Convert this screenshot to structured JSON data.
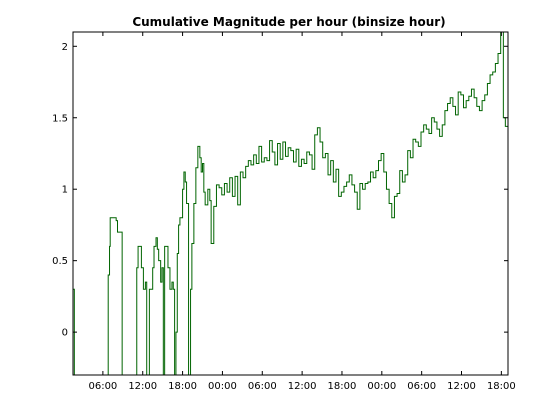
{
  "chart_data": {
    "type": "line",
    "title": "Cumulative Magnitude per hour (binsize  hour)",
    "xlabel": "",
    "ylabel": "",
    "xlim": [
      0,
      65.5
    ],
    "ylim": [
      -0.3,
      2.1
    ],
    "x_ticks": [
      {
        "x": 4.5,
        "label": "06:00"
      },
      {
        "x": 10.5,
        "label": "12:00"
      },
      {
        "x": 16.5,
        "label": "18:00"
      },
      {
        "x": 22.5,
        "label": "00:00"
      },
      {
        "x": 28.5,
        "label": "06:00"
      },
      {
        "x": 34.5,
        "label": "12:00"
      },
      {
        "x": 40.5,
        "label": "18:00"
      },
      {
        "x": 46.5,
        "label": "00:00"
      },
      {
        "x": 52.5,
        "label": "06:00"
      },
      {
        "x": 58.5,
        "label": "12:00"
      },
      {
        "x": 64.5,
        "label": "18:00"
      }
    ],
    "y_ticks": [
      {
        "y": 0,
        "label": "0"
      },
      {
        "y": 0.5,
        "label": "0.5"
      },
      {
        "y": 1,
        "label": "1"
      },
      {
        "y": 1.5,
        "label": "1.5"
      },
      {
        "y": 2,
        "label": "2"
      }
    ],
    "grid": false,
    "legend": "none",
    "series": [
      {
        "color": "#006400",
        "step": true,
        "x": [
          0.0,
          0.2,
          0.4,
          5.3,
          5.5,
          5.6,
          5.9,
          6.5,
          6.7,
          7.2,
          7.4,
          9.4,
          9.6,
          9.8,
          10.0,
          10.3,
          10.6,
          10.9,
          11.1,
          11.3,
          11.5,
          11.6,
          12.0,
          12.2,
          12.5,
          12.7,
          12.9,
          13.2,
          13.4,
          13.6,
          13.8,
          14.3,
          14.6,
          14.9,
          15.1,
          15.3,
          15.5,
          15.7,
          15.9,
          16.1,
          16.3,
          16.5,
          16.7,
          16.9,
          17.1,
          17.4,
          17.7,
          17.9,
          18.2,
          18.5,
          18.8,
          19.1,
          19.3,
          19.5,
          19.7,
          19.9,
          20.3,
          20.6,
          20.8,
          21.2,
          21.6,
          22.0,
          22.4,
          22.8,
          23.2,
          23.6,
          24.0,
          24.4,
          24.8,
          25.2,
          25.6,
          26.0,
          26.4,
          26.8,
          27.2,
          27.6,
          28.0,
          28.4,
          28.8,
          29.2,
          29.6,
          30.0,
          30.4,
          30.8,
          31.2,
          31.6,
          32.0,
          32.4,
          32.8,
          33.2,
          33.6,
          34.0,
          34.4,
          34.8,
          35.2,
          35.6,
          36.0,
          36.4,
          36.8,
          37.2,
          37.6,
          38.0,
          38.4,
          38.8,
          39.2,
          39.6,
          40.0,
          40.4,
          40.8,
          41.2,
          41.6,
          42.0,
          42.4,
          42.8,
          43.2,
          43.6,
          44.0,
          44.4,
          44.8,
          45.2,
          45.6,
          46.0,
          46.4,
          46.8,
          47.2,
          47.6,
          48.0,
          48.4,
          48.8,
          49.2,
          49.6,
          50.0,
          50.4,
          50.8,
          51.2,
          51.6,
          52.0,
          52.4,
          52.8,
          53.2,
          53.6,
          54.0,
          54.4,
          54.8,
          55.2,
          55.6,
          56.0,
          56.4,
          56.8,
          57.2,
          57.6,
          58.0,
          58.4,
          58.8,
          59.2,
          59.6,
          60.0,
          60.4,
          60.8,
          61.2,
          61.6,
          62.0,
          62.4,
          62.8,
          63.2,
          63.6,
          64.0,
          64.4,
          64.8,
          65.1,
          65.5
        ],
        "y": [
          0.3,
          -0.3,
          -0.3,
          0.4,
          0.6,
          0.8,
          0.8,
          0.78,
          0.7,
          0.7,
          -0.3,
          -0.3,
          0.45,
          0.6,
          0.6,
          0.45,
          0.3,
          0.35,
          -0.3,
          -0.3,
          0.3,
          0.3,
          0.45,
          0.6,
          0.66,
          0.58,
          0.5,
          0.35,
          0.45,
          -0.3,
          0.6,
          0.45,
          0.3,
          0.35,
          0.3,
          -0.3,
          0.0,
          0.55,
          0.75,
          0.8,
          0.8,
          1.0,
          1.12,
          1.05,
          0.9,
          -0.3,
          0.3,
          0.62,
          0.9,
          1.15,
          1.3,
          1.22,
          1.12,
          1.18,
          0.98,
          0.89,
          1.0,
          0.92,
          0.62,
          0.88,
          1.03,
          1.01,
          0.96,
          1.04,
          0.98,
          1.08,
          0.95,
          1.09,
          0.89,
          1.12,
          1.08,
          1.16,
          1.2,
          1.17,
          1.24,
          1.18,
          1.3,
          1.19,
          1.22,
          1.2,
          1.34,
          1.26,
          1.17,
          1.32,
          1.21,
          1.33,
          1.23,
          1.29,
          1.27,
          1.19,
          1.28,
          1.16,
          1.21,
          1.18,
          1.26,
          1.24,
          1.14,
          1.38,
          1.43,
          1.33,
          1.22,
          1.25,
          1.1,
          1.2,
          1.05,
          1.14,
          0.95,
          0.98,
          1.02,
          1.05,
          1.1,
          1.03,
          0.98,
          0.86,
          1.04,
          1.0,
          1.04,
          1.05,
          1.12,
          1.08,
          1.13,
          1.2,
          1.25,
          1.12,
          1.0,
          0.9,
          0.8,
          0.95,
          0.97,
          1.13,
          1.05,
          1.1,
          1.27,
          1.22,
          1.35,
          1.33,
          1.3,
          1.4,
          1.45,
          1.42,
          1.39,
          1.5,
          1.47,
          1.42,
          1.37,
          1.45,
          1.55,
          1.6,
          1.64,
          1.58,
          1.52,
          1.68,
          1.66,
          1.57,
          1.62,
          1.65,
          1.7,
          1.64,
          1.58,
          1.55,
          1.62,
          1.66,
          1.74,
          1.8,
          1.82,
          1.88,
          1.95,
          2.1,
          1.5,
          1.44,
          1.46
        ]
      }
    ]
  }
}
